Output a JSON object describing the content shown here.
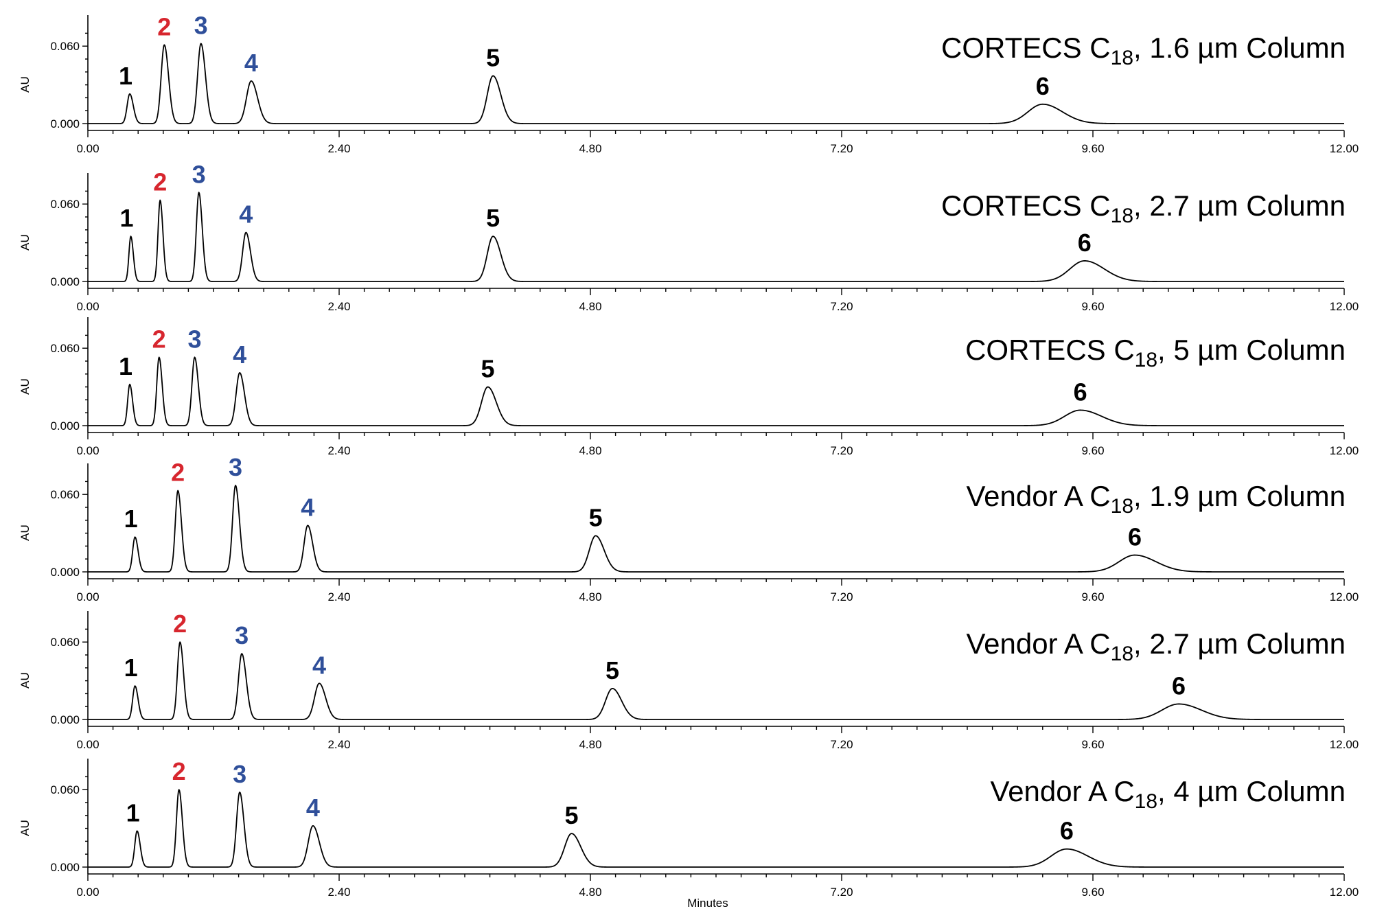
{
  "chart_data": {
    "type": "line",
    "xlabel": "Minutes",
    "ylabel": "AU",
    "xlim": [
      0,
      12
    ],
    "ylim": [
      -0.003,
      0.075
    ],
    "x_ticks": [
      "0.00",
      "2.40",
      "4.80",
      "7.20",
      "9.60",
      "12.00"
    ],
    "y_ticks": [
      "0.000",
      "0.060"
    ],
    "colors": {
      "black": "#000000",
      "red": "#d7262e",
      "blue": "#2f4f9a"
    },
    "panels": [
      {
        "title_main": "CORTECS C",
        "title_sub": "18",
        "title_rest": ", 1.6 µm Column",
        "peaks": [
          {
            "label": "1",
            "rt": 0.4,
            "height": 0.023,
            "width": 0.025,
            "color": "black"
          },
          {
            "label": "2",
            "rt": 0.73,
            "height": 0.061,
            "width": 0.03,
            "color": "red"
          },
          {
            "label": "3",
            "rt": 1.08,
            "height": 0.062,
            "width": 0.032,
            "color": "blue"
          },
          {
            "label": "4",
            "rt": 1.56,
            "height": 0.033,
            "width": 0.045,
            "color": "blue"
          },
          {
            "label": "5",
            "rt": 3.87,
            "height": 0.037,
            "width": 0.055,
            "color": "black"
          },
          {
            "label": "6",
            "rt": 9.12,
            "height": 0.015,
            "width": 0.14,
            "color": "black"
          }
        ]
      },
      {
        "title_main": "CORTECS C",
        "title_sub": "18",
        "title_rest": ", 2.7 µm Column",
        "peaks": [
          {
            "label": "1",
            "rt": 0.41,
            "height": 0.035,
            "width": 0.018,
            "color": "black"
          },
          {
            "label": "2",
            "rt": 0.69,
            "height": 0.063,
            "width": 0.02,
            "color": "red"
          },
          {
            "label": "3",
            "rt": 1.06,
            "height": 0.069,
            "width": 0.024,
            "color": "blue"
          },
          {
            "label": "4",
            "rt": 1.51,
            "height": 0.038,
            "width": 0.032,
            "color": "blue"
          },
          {
            "label": "5",
            "rt": 3.87,
            "height": 0.035,
            "width": 0.055,
            "color": "black"
          },
          {
            "label": "6",
            "rt": 9.52,
            "height": 0.016,
            "width": 0.14,
            "color": "black"
          }
        ]
      },
      {
        "title_main": "CORTECS C",
        "title_sub": "18",
        "title_rest": ", 5 µm Column",
        "peaks": [
          {
            "label": "1",
            "rt": 0.4,
            "height": 0.032,
            "width": 0.02,
            "color": "black"
          },
          {
            "label": "2",
            "rt": 0.68,
            "height": 0.053,
            "width": 0.022,
            "color": "red"
          },
          {
            "label": "3",
            "rt": 1.02,
            "height": 0.053,
            "width": 0.026,
            "color": "blue"
          },
          {
            "label": "4",
            "rt": 1.45,
            "height": 0.041,
            "width": 0.034,
            "color": "blue"
          },
          {
            "label": "5",
            "rt": 3.82,
            "height": 0.03,
            "width": 0.06,
            "color": "black"
          },
          {
            "label": "6",
            "rt": 9.48,
            "height": 0.012,
            "width": 0.15,
            "color": "black"
          }
        ]
      },
      {
        "title_main": "Vendor A C",
        "title_sub": "18",
        "title_rest": ", 1.9 µm Column",
        "peaks": [
          {
            "label": "1",
            "rt": 0.45,
            "height": 0.027,
            "width": 0.022,
            "color": "black"
          },
          {
            "label": "2",
            "rt": 0.86,
            "height": 0.063,
            "width": 0.025,
            "color": "red"
          },
          {
            "label": "3",
            "rt": 1.41,
            "height": 0.067,
            "width": 0.028,
            "color": "blue"
          },
          {
            "label": "4",
            "rt": 2.1,
            "height": 0.036,
            "width": 0.035,
            "color": "blue"
          },
          {
            "label": "5",
            "rt": 4.85,
            "height": 0.028,
            "width": 0.06,
            "color": "black"
          },
          {
            "label": "6",
            "rt": 10.0,
            "height": 0.013,
            "width": 0.15,
            "color": "black"
          }
        ]
      },
      {
        "title_main": "Vendor A C",
        "title_sub": "18",
        "title_rest": ", 2.7 µm Column",
        "peaks": [
          {
            "label": "1",
            "rt": 0.45,
            "height": 0.026,
            "width": 0.022,
            "color": "black"
          },
          {
            "label": "2",
            "rt": 0.88,
            "height": 0.06,
            "width": 0.025,
            "color": "red"
          },
          {
            "label": "3",
            "rt": 1.47,
            "height": 0.051,
            "width": 0.032,
            "color": "blue"
          },
          {
            "label": "4",
            "rt": 2.21,
            "height": 0.028,
            "width": 0.045,
            "color": "blue"
          },
          {
            "label": "5",
            "rt": 5.01,
            "height": 0.024,
            "width": 0.065,
            "color": "black"
          },
          {
            "label": "6",
            "rt": 10.42,
            "height": 0.012,
            "width": 0.16,
            "color": "black"
          }
        ]
      },
      {
        "title_main": "Vendor A C",
        "title_sub": "18",
        "title_rest": ", 4 µm Column",
        "peaks": [
          {
            "label": "1",
            "rt": 0.47,
            "height": 0.028,
            "width": 0.022,
            "color": "black"
          },
          {
            "label": "2",
            "rt": 0.87,
            "height": 0.06,
            "width": 0.024,
            "color": "red"
          },
          {
            "label": "3",
            "rt": 1.45,
            "height": 0.058,
            "width": 0.03,
            "color": "blue"
          },
          {
            "label": "4",
            "rt": 2.15,
            "height": 0.032,
            "width": 0.045,
            "color": "blue"
          },
          {
            "label": "5",
            "rt": 4.62,
            "height": 0.026,
            "width": 0.065,
            "color": "black"
          },
          {
            "label": "6",
            "rt": 9.35,
            "height": 0.014,
            "width": 0.15,
            "color": "black"
          }
        ]
      }
    ]
  }
}
